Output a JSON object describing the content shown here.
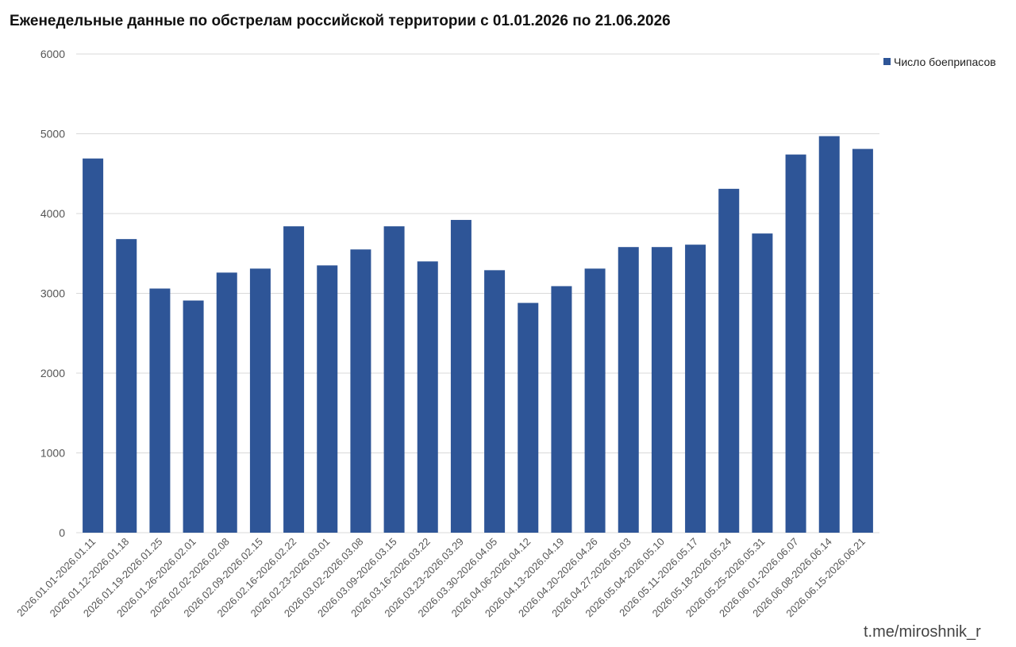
{
  "chart_data": {
    "type": "bar",
    "title": "Еженедельные данные по обстрелам российской территории с 01.01.2026 по 21.06.2026",
    "xlabel": "",
    "ylabel": "",
    "ylim": [
      0,
      6000
    ],
    "yticks": [
      0,
      1000,
      2000,
      3000,
      4000,
      5000,
      6000
    ],
    "grid": true,
    "legend_position": "top-right",
    "categories": [
      "2026.01.01-2026.01.11",
      "2026.01.12-2026.01.18",
      "2026.01.19-2026.01.25",
      "2026.01.26-2026.02.01",
      "2026.02.02-2026.02.08",
      "2026.02.09-2026.02.15",
      "2026.02.16-2026.02.22",
      "2026.02.23-2026.03.01",
      "2026.03.02-2026.03.08",
      "2026.03.09-2026.03.15",
      "2026.03.16-2026.03.22",
      "2026.03.23-2026.03.29",
      "2026.03.30-2026.04.05",
      "2026.04.06-2026.04.12",
      "2026.04.13-2026.04.19",
      "2026.04.20-2026.04.26",
      "2026.04.27-2026.05.03",
      "2026.05.04-2026.05.10",
      "2026.05.11-2026.05.17",
      "2026.05.18-2026.05.24",
      "2026.05.25-2026.05.31",
      "2026.06.01-2026.06.07",
      "2026.06.08-2026.06.14",
      "2026.06.15-2026.06.21"
    ],
    "series": [
      {
        "name": "Число боеприпасов",
        "color": "#2e5597",
        "values": [
          4690,
          3680,
          3060,
          2910,
          3260,
          3310,
          3840,
          3350,
          3550,
          3840,
          3400,
          3920,
          3290,
          2880,
          3090,
          3310,
          3580,
          3580,
          3610,
          4310,
          3750,
          4740,
          4970,
          4810
        ]
      }
    ]
  },
  "credit": "t.me/miroshnik_r",
  "colors": {
    "bar": "#2e5597",
    "grid": "#d9d9d9"
  }
}
